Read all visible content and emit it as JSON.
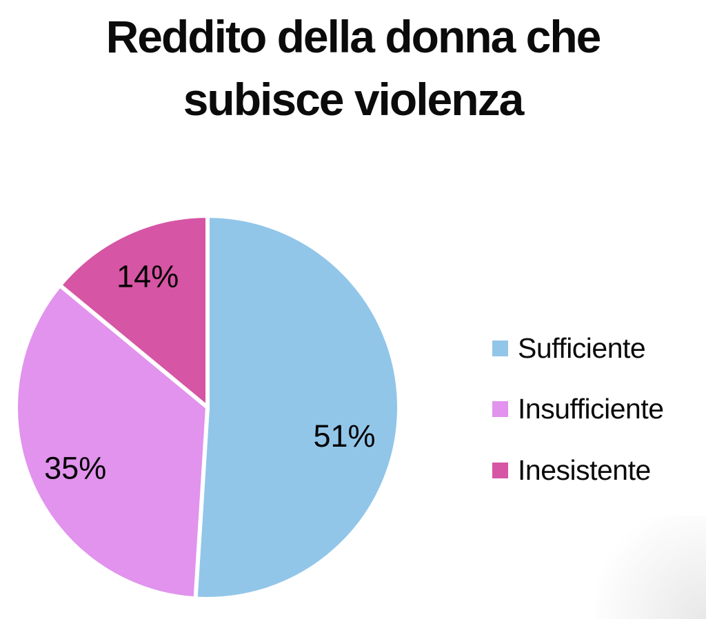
{
  "header": {
    "title": "Reddito della donna che subisce violenza",
    "title_lines": [
      "Reddito della donna che",
      "subisce violenza"
    ]
  },
  "chart_data": {
    "type": "pie",
    "title": "Reddito della donna che subisce violenza",
    "categories": [
      "Sufficiente",
      "Insufficiente",
      "Inesistente"
    ],
    "values": [
      51,
      35,
      14
    ],
    "unit": "%",
    "slices": [
      {
        "label": "Sufficiente",
        "value": 51,
        "display": "51%",
        "color": "#92C6E9",
        "label_angle_deg": 102.0,
        "label_r_frac": 0.73
      },
      {
        "label": "Insufficiente",
        "value": 35,
        "display": "35%",
        "color": "#E193ED",
        "label_angle_deg": 245.2,
        "label_r_frac": 0.76
      },
      {
        "label": "Inesistente",
        "value": 14,
        "display": "14%",
        "color": "#D655A4",
        "label_angle_deg": 335.4,
        "label_r_frac": 0.75
      }
    ],
    "start_angle_deg": 0,
    "direction": "clockwise",
    "legend_position": "right",
    "slice_separator_color": "#FFFFFF",
    "data_label_color": "#000000",
    "title_color": "#0B0B0B"
  }
}
